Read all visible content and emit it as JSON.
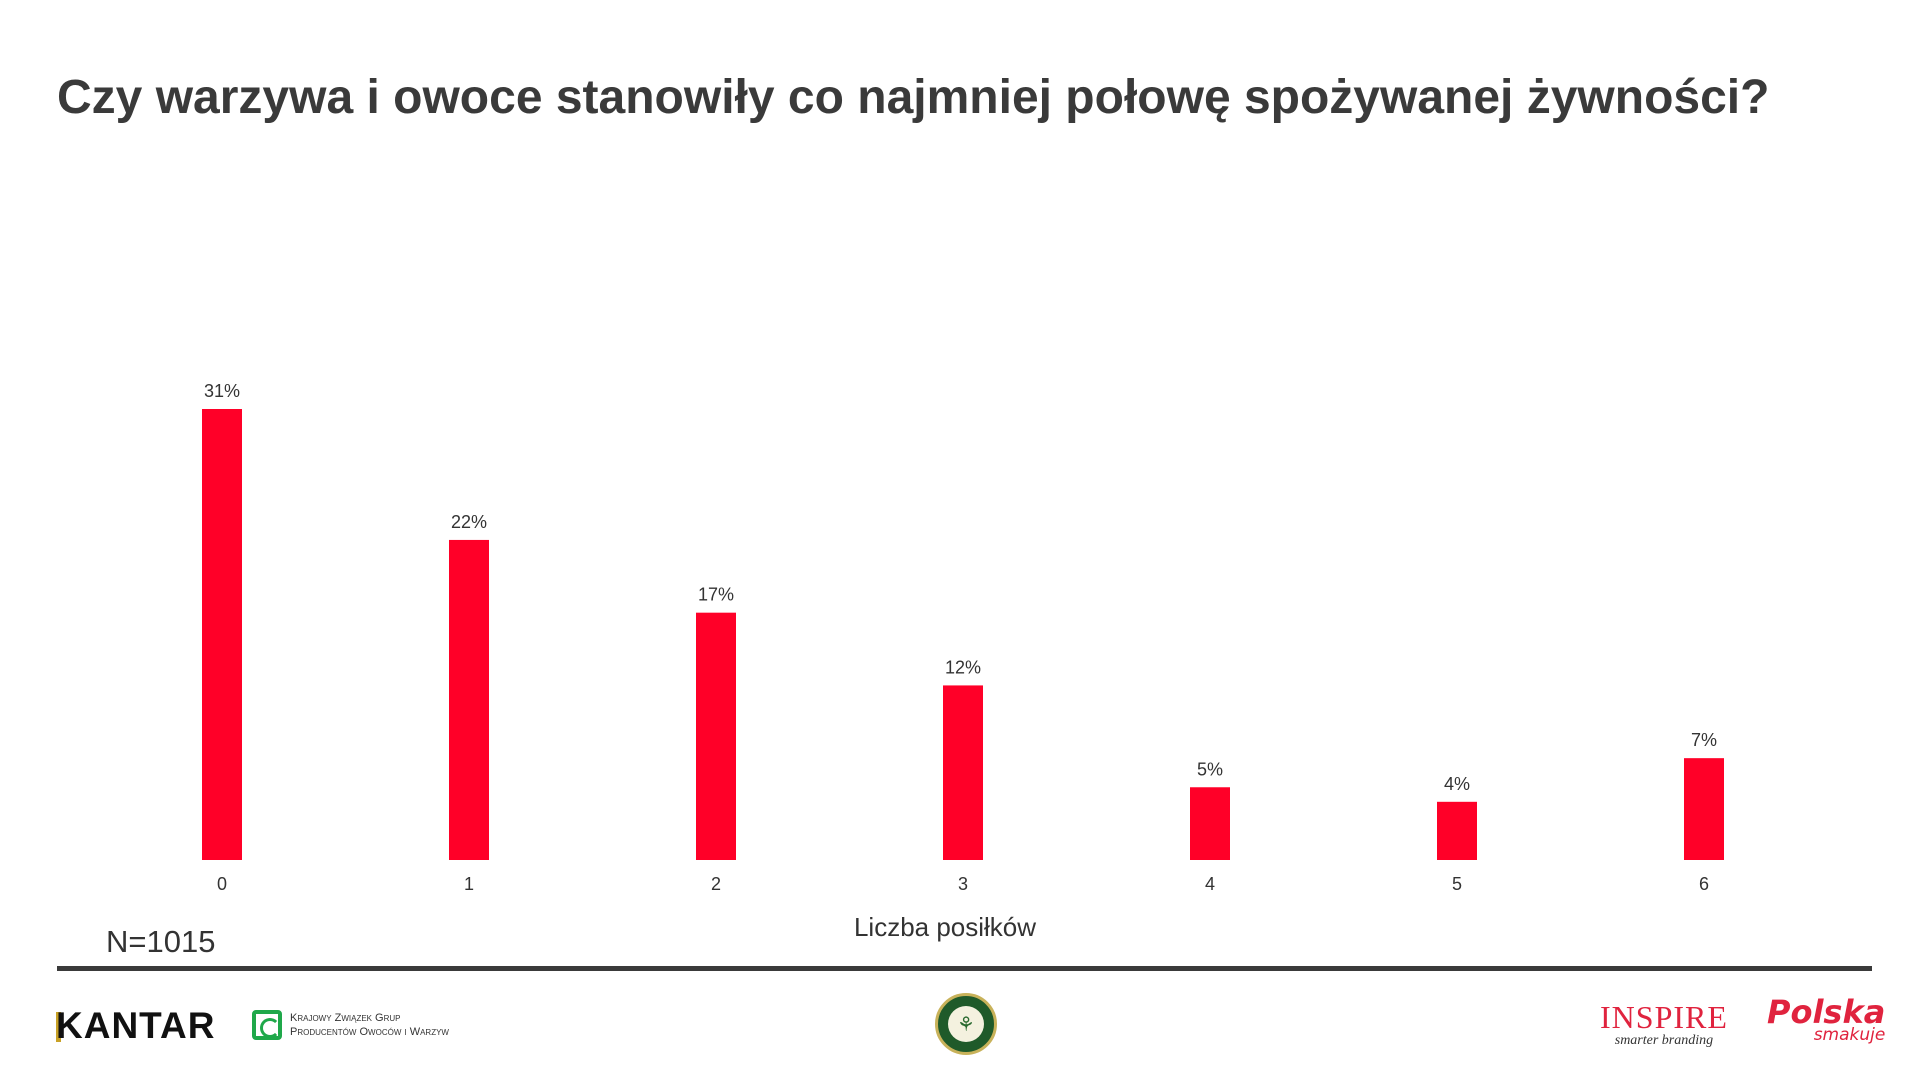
{
  "title": "Czy warzywa i owoce stanowiły co najmniej połowę spożywanej żywności?",
  "sample_size": "N=1015",
  "colors": {
    "bar": "#ff0028",
    "title": "#3a3a3a",
    "rule": "#3a3a3a"
  },
  "chart_data": {
    "type": "bar",
    "categories": [
      "0",
      "1",
      "2",
      "3",
      "4",
      "5",
      "6"
    ],
    "values": [
      31,
      22,
      17,
      12,
      5,
      4,
      7
    ],
    "data_labels": [
      "31%",
      "22%",
      "17%",
      "12%",
      "5%",
      "4%",
      "7%"
    ],
    "unit": "%",
    "title": "Czy warzywa i owoce stanowiły co najmniej połowę spożywanej żywności?",
    "xlabel": "Liczba posiłków",
    "ylabel": "",
    "ylim": [
      0,
      31
    ],
    "grid": false,
    "legend": "none"
  },
  "footer": {
    "kantar": "KANTAR",
    "kzgpow_line1": "Krajowy Związek Grup",
    "kzgpow_line2": "Producentów Owoców i Warzyw",
    "ministry_icon": "wheat-emblem-icon",
    "inspire": "INSPIRE",
    "inspire_sub": "smarter branding",
    "polska": "Polska",
    "polska_sub": "smakuje"
  }
}
